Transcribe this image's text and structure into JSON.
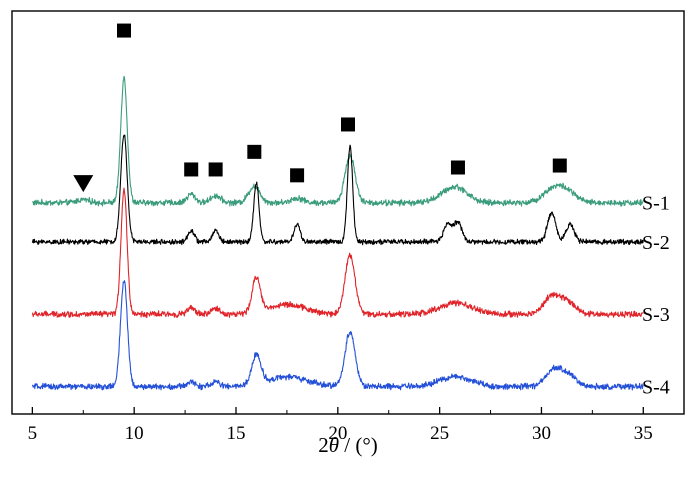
{
  "chart_data": {
    "type": "line",
    "title": "",
    "xlabel": {
      "prefix": "2",
      "symbol": "θ",
      "suffix": " / (°)"
    },
    "ylabel": "",
    "xlim": [
      4,
      37
    ],
    "x_ticks": [
      5,
      10,
      15,
      20,
      25,
      30,
      35
    ],
    "x_tick_labels": [
      "5",
      "10",
      "15",
      "20",
      "25",
      "30",
      "35"
    ],
    "x_range": [
      5,
      35
    ],
    "grid": false,
    "legend": "none",
    "series": [
      {
        "name": "S-1",
        "color": "#3a9c7c",
        "baseline": 1.0,
        "noise": 0.06,
        "peaks": [
          {
            "x": 7.5,
            "h": 0.08,
            "w": 0.3
          },
          {
            "x": 9.5,
            "h": 3.2,
            "w": 0.16
          },
          {
            "x": 12.8,
            "h": 0.22,
            "w": 0.2
          },
          {
            "x": 14.0,
            "h": 0.18,
            "w": 0.25
          },
          {
            "x": 15.9,
            "h": 0.42,
            "w": 0.28
          },
          {
            "x": 18.0,
            "h": 0.12,
            "w": 0.3
          },
          {
            "x": 20.6,
            "h": 1.2,
            "w": 0.25
          },
          {
            "x": 25.5,
            "h": 0.25,
            "w": 0.6
          },
          {
            "x": 26.0,
            "h": 0.2,
            "w": 0.5
          },
          {
            "x": 30.6,
            "h": 0.35,
            "w": 0.5
          },
          {
            "x": 31.3,
            "h": 0.22,
            "w": 0.45
          }
        ]
      },
      {
        "name": "S-2",
        "color": "#000000",
        "baseline": 0.0,
        "noise": 0.05,
        "peaks": [
          {
            "x": 9.5,
            "h": 2.75,
            "w": 0.16
          },
          {
            "x": 12.8,
            "h": 0.3,
            "w": 0.15
          },
          {
            "x": 14.0,
            "h": 0.3,
            "w": 0.15
          },
          {
            "x": 16.0,
            "h": 1.5,
            "w": 0.13
          },
          {
            "x": 18.0,
            "h": 0.45,
            "w": 0.15
          },
          {
            "x": 20.6,
            "h": 2.45,
            "w": 0.13
          },
          {
            "x": 25.4,
            "h": 0.45,
            "w": 0.2
          },
          {
            "x": 25.9,
            "h": 0.5,
            "w": 0.2
          },
          {
            "x": 30.5,
            "h": 0.75,
            "w": 0.2
          },
          {
            "x": 31.4,
            "h": 0.45,
            "w": 0.2
          }
        ]
      },
      {
        "name": "S-3",
        "color": "#e0242a",
        "baseline": -1.85,
        "noise": 0.06,
        "peaks": [
          {
            "x": 9.5,
            "h": 3.2,
            "w": 0.15
          },
          {
            "x": 12.8,
            "h": 0.15,
            "w": 0.2
          },
          {
            "x": 14.0,
            "h": 0.15,
            "w": 0.2
          },
          {
            "x": 16.0,
            "h": 0.9,
            "w": 0.2
          },
          {
            "x": 17.5,
            "h": 0.25,
            "w": 0.9
          },
          {
            "x": 20.6,
            "h": 1.5,
            "w": 0.25
          },
          {
            "x": 25.8,
            "h": 0.28,
            "w": 0.8
          },
          {
            "x": 30.5,
            "h": 0.45,
            "w": 0.4
          },
          {
            "x": 31.3,
            "h": 0.3,
            "w": 0.4
          }
        ]
      },
      {
        "name": "S-4",
        "color": "#2450d8",
        "baseline": -3.7,
        "noise": 0.06,
        "peaks": [
          {
            "x": 9.5,
            "h": 2.7,
            "w": 0.17
          },
          {
            "x": 12.8,
            "h": 0.12,
            "w": 0.2
          },
          {
            "x": 14.0,
            "h": 0.12,
            "w": 0.2
          },
          {
            "x": 16.0,
            "h": 0.75,
            "w": 0.22
          },
          {
            "x": 17.5,
            "h": 0.25,
            "w": 1.0
          },
          {
            "x": 20.6,
            "h": 1.4,
            "w": 0.25
          },
          {
            "x": 25.8,
            "h": 0.25,
            "w": 0.8
          },
          {
            "x": 30.6,
            "h": 0.4,
            "w": 0.4
          },
          {
            "x": 31.3,
            "h": 0.28,
            "w": 0.4
          }
        ]
      }
    ],
    "ylim": [
      -4.4,
      5.9
    ],
    "annotations": {
      "square_markers": [
        {
          "x": 9.5,
          "y": 5.4
        },
        {
          "x": 12.8,
          "y": 1.85
        },
        {
          "x": 14.0,
          "y": 1.85
        },
        {
          "x": 15.9,
          "y": 2.3
        },
        {
          "x": 18.0,
          "y": 1.7
        },
        {
          "x": 20.5,
          "y": 3.0
        },
        {
          "x": 25.9,
          "y": 1.9
        },
        {
          "x": 30.9,
          "y": 1.95
        }
      ],
      "triangle_markers": [
        {
          "x": 7.5,
          "y": 1.5
        }
      ]
    }
  }
}
